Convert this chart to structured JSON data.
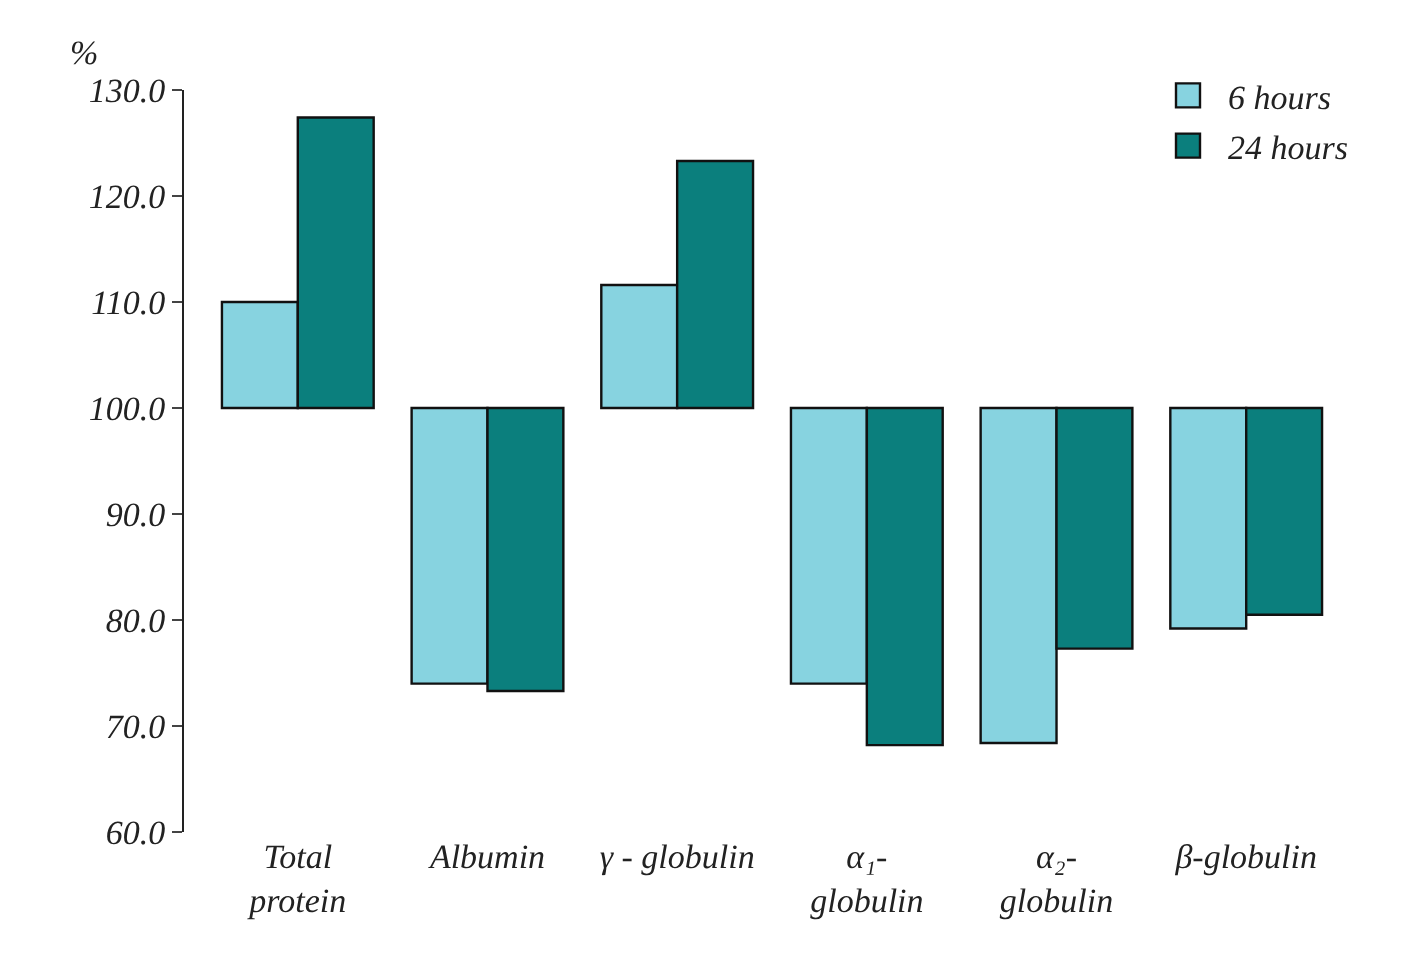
{
  "chart_data": {
    "type": "bar",
    "ylabel": "%",
    "categories": [
      "Total\nprotein",
      "Albumin",
      "γ - globulin",
      "α₁-\nglobulin",
      "α₂-\nglobulin",
      "β-globulin"
    ],
    "series": [
      {
        "name": "6 hours",
        "color": "#87d3e0",
        "base": [
          100,
          100,
          100,
          100,
          100,
          100
        ],
        "values": [
          10.0,
          -26.0,
          11.6,
          -26.0,
          -31.6,
          -20.8
        ]
      },
      {
        "name": "24 hours",
        "color": "#0b7f7d",
        "base": [
          100,
          100,
          100,
          100,
          100,
          100
        ],
        "values": [
          27.4,
          -26.7,
          23.3,
          -31.8,
          -22.7,
          -19.5
        ]
      }
    ],
    "ylim": [
      60,
      130
    ],
    "yticks": [
      {
        "value": 60,
        "label": "60.0"
      },
      {
        "value": 70,
        "label": "70.0"
      },
      {
        "value": 80,
        "label": "80.0"
      },
      {
        "value": 90,
        "label": "90.0"
      },
      {
        "value": 100,
        "label": "100.0"
      },
      {
        "value": 110,
        "label": "110.0"
      },
      {
        "value": 120,
        "label": "120.0"
      },
      {
        "value": 130,
        "label": "130.0"
      }
    ],
    "legend": "top right"
  }
}
